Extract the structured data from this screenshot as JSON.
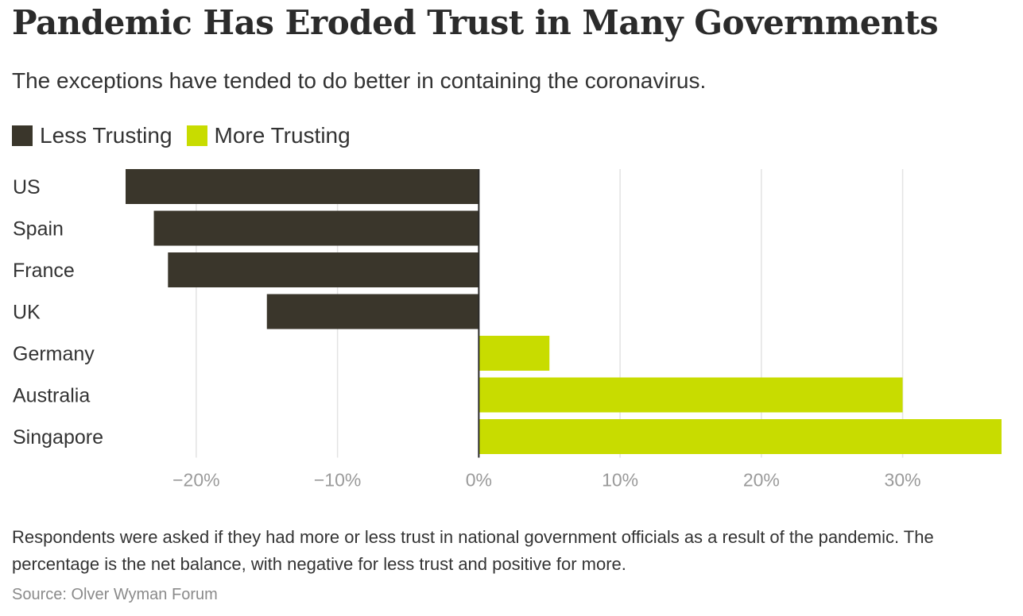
{
  "chart_data": {
    "type": "bar",
    "orientation": "horizontal",
    "title": "Pandemic Has Eroded Trust in Many Governments",
    "subtitle": "The exceptions have tended to do better in containing the coronavirus.",
    "categories": [
      "US",
      "Spain",
      "France",
      "UK",
      "Germany",
      "Australia",
      "Singapore"
    ],
    "values": [
      -25,
      -23,
      -22,
      -15,
      5,
      30,
      37
    ],
    "xlim": [
      -25,
      37
    ],
    "x_ticks": [
      -20,
      -10,
      0,
      10,
      20,
      30
    ],
    "x_tick_labels": [
      "−20%",
      "−10%",
      "0%",
      "10%",
      "20%",
      "30%"
    ],
    "grid": true,
    "legend": [
      {
        "label": "Less Trusting",
        "color": "#3a362b"
      },
      {
        "label": "More Trusting",
        "color": "#c8dc00"
      }
    ],
    "legend_position": "top-left",
    "colors": {
      "negative": "#3a362b",
      "positive": "#c8dc00",
      "grid": "#e3e3e3",
      "tick_text": "#9a9a9a"
    }
  },
  "note": "Respondents were asked if they had more or less trust in national government officials as a result of the pandemic. The percentage is the net balance, with negative for less trust and positive for more.",
  "source": "Source: Olver Wyman Forum"
}
